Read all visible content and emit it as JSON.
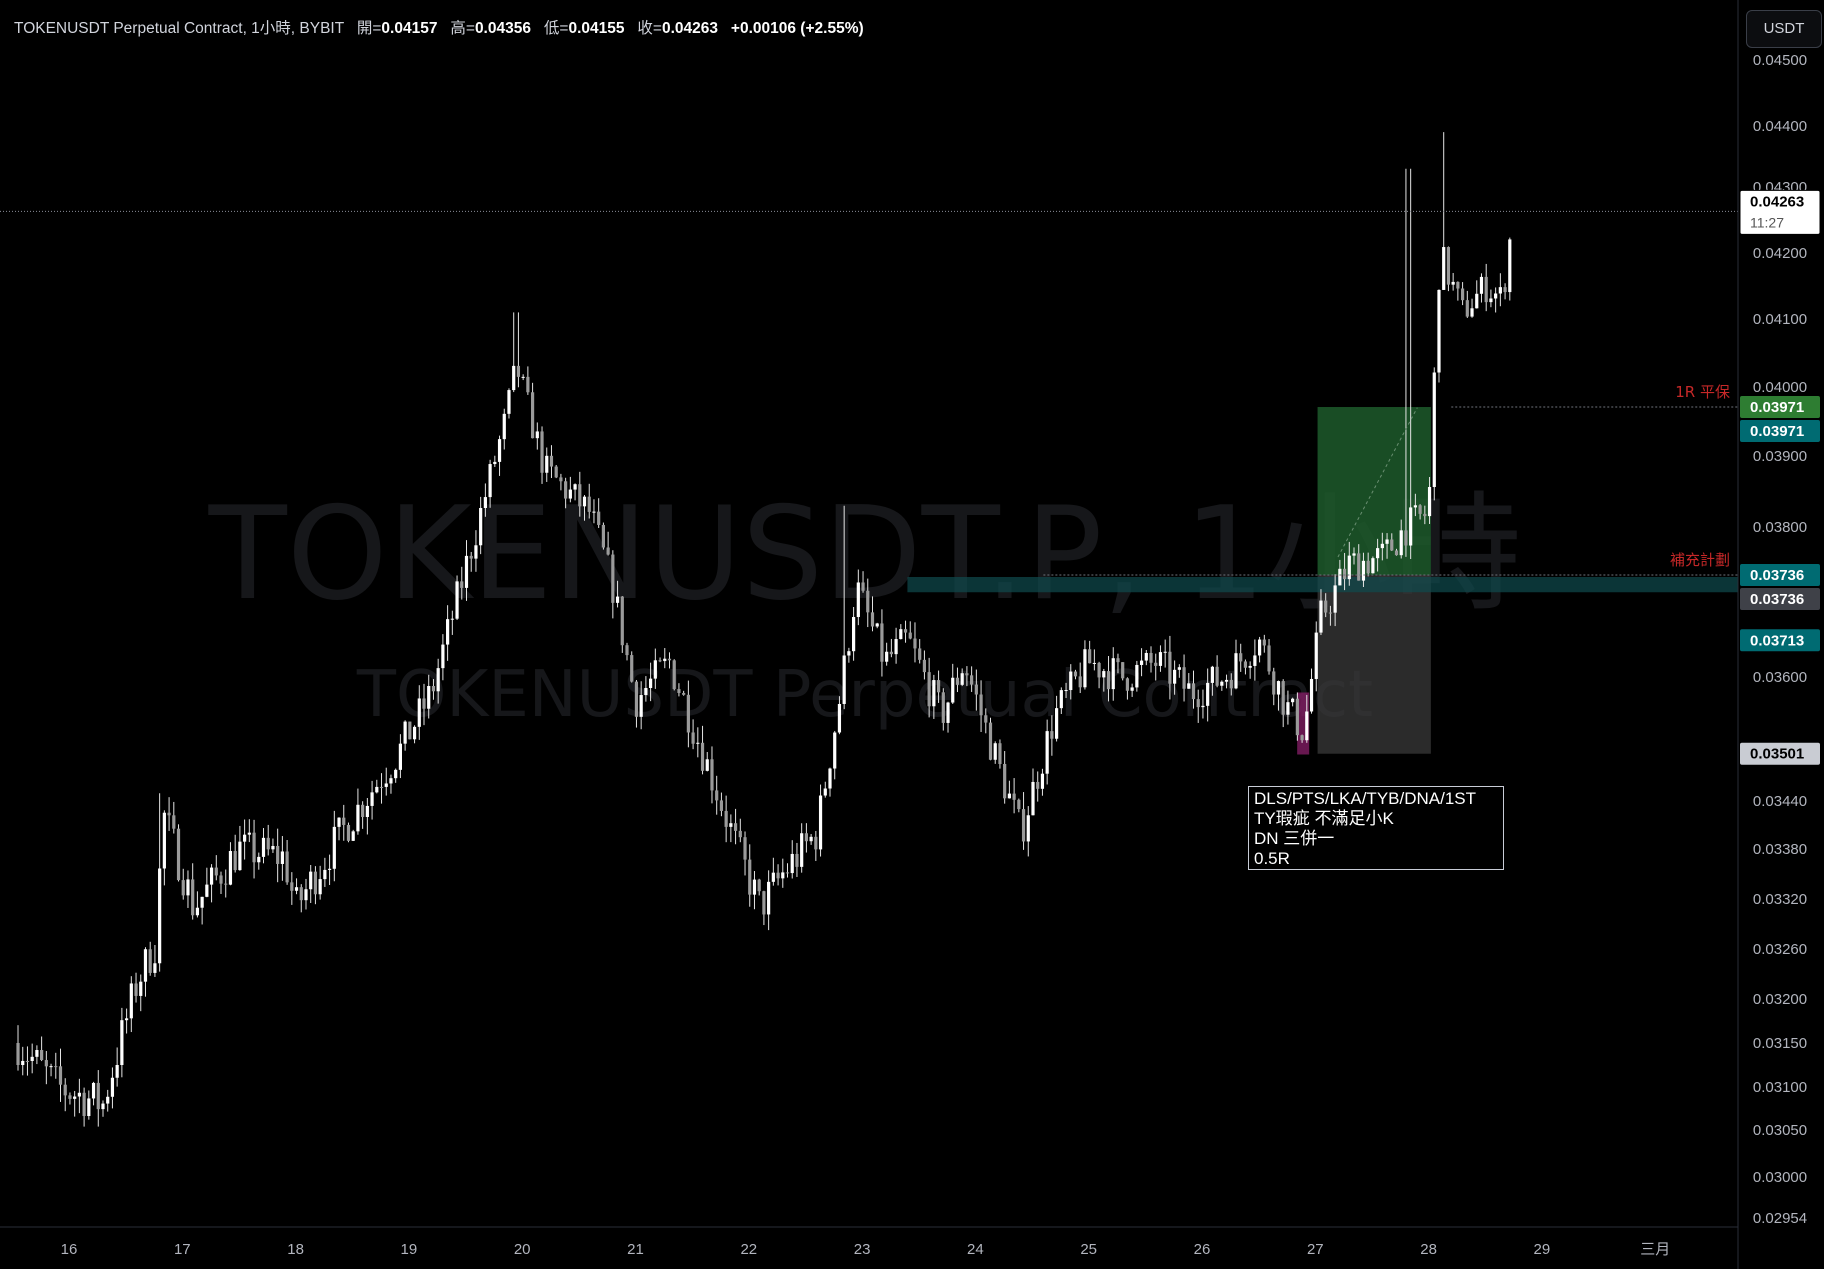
{
  "header": {
    "symbol_text": "TOKENUSDT Perpetual Contract, 1小時, BYBIT",
    "open_label": "開=",
    "open_value": "0.04157",
    "high_label": "高=",
    "high_value": "0.04356",
    "low_label": "低=",
    "low_value": "0.04155",
    "close_label": "收=",
    "close_value": "0.04263",
    "change": "+0.00106 (+2.55%)"
  },
  "currency_button": "USDT",
  "watermark": {
    "line1": "TOKENUSDT.P, 1小時",
    "line2": "TOKENUSDT Perpetual Contract"
  },
  "chart_data": {
    "type": "candlestick",
    "symbol": "TOKENUSDT.P",
    "interval": "1小時",
    "exchange": "BYBIT",
    "ohlc_last": {
      "open": 0.04157,
      "high": 0.04356,
      "low": 0.04155,
      "close": 0.04263
    },
    "y_ticks": [
      "0.04500",
      "0.04400",
      "0.04300",
      "0.04200",
      "0.04100",
      "0.04000",
      "0.03900",
      "0.03800",
      "0.03600",
      "0.03440",
      "0.03380",
      "0.03320",
      "0.03260",
      "0.03200",
      "0.03150",
      "0.03100",
      "0.03050",
      "0.03000",
      "0.02954"
    ],
    "y_tick_values": [
      0.045,
      0.044,
      0.043,
      0.042,
      0.041,
      0.04,
      0.039,
      0.038,
      0.036,
      0.0344,
      0.0338,
      0.0332,
      0.0326,
      0.032,
      0.0315,
      0.031,
      0.0305,
      0.03,
      0.02954
    ],
    "x_ticks": [
      "16",
      "17",
      "18",
      "19",
      "20",
      "21",
      "22",
      "23",
      "24",
      "25",
      "26",
      "27",
      "28",
      "29",
      "三月"
    ],
    "x_tick_values": [
      16,
      17,
      18,
      19,
      20,
      21,
      22,
      23,
      24,
      25,
      26,
      27,
      28,
      29,
      30
    ],
    "x_range": [
      15.55,
      30.8
    ],
    "daily_path": [
      {
        "day": 15.55,
        "close": 0.0315
      },
      {
        "day": 15.9,
        "close": 0.031
      },
      {
        "day": 16.3,
        "close": 0.0308
      },
      {
        "day": 16.6,
        "close": 0.0322
      },
      {
        "day": 16.78,
        "close": 0.0327
      },
      {
        "day": 16.82,
        "close": 0.0343
      },
      {
        "day": 17.1,
        "close": 0.0331
      },
      {
        "day": 17.5,
        "close": 0.0338
      },
      {
        "day": 17.9,
        "close": 0.0337
      },
      {
        "day": 18.0,
        "close": 0.0331
      },
      {
        "day": 18.4,
        "close": 0.034
      },
      {
        "day": 18.9,
        "close": 0.035
      },
      {
        "day": 19.2,
        "close": 0.0358
      },
      {
        "day": 19.6,
        "close": 0.038
      },
      {
        "day": 19.85,
        "close": 0.0395
      },
      {
        "day": 19.95,
        "close": 0.0403
      },
      {
        "day": 20.2,
        "close": 0.0388
      },
      {
        "day": 20.6,
        "close": 0.0382
      },
      {
        "day": 20.8,
        "close": 0.0372
      },
      {
        "day": 21.0,
        "close": 0.0357
      },
      {
        "day": 21.3,
        "close": 0.0362
      },
      {
        "day": 21.6,
        "close": 0.035
      },
      {
        "day": 21.9,
        "close": 0.0338
      },
      {
        "day": 22.1,
        "close": 0.0331
      },
      {
        "day": 22.3,
        "close": 0.0335
      },
      {
        "day": 22.6,
        "close": 0.034
      },
      {
        "day": 22.8,
        "close": 0.0357
      },
      {
        "day": 22.95,
        "close": 0.0372
      },
      {
        "day": 23.2,
        "close": 0.0362
      },
      {
        "day": 23.4,
        "close": 0.0365
      },
      {
        "day": 23.7,
        "close": 0.0355
      },
      {
        "day": 23.9,
        "close": 0.0362
      },
      {
        "day": 24.1,
        "close": 0.0353
      },
      {
        "day": 24.4,
        "close": 0.034
      },
      {
        "day": 24.7,
        "close": 0.0355
      },
      {
        "day": 25.0,
        "close": 0.0362
      },
      {
        "day": 25.3,
        "close": 0.036
      },
      {
        "day": 25.6,
        "close": 0.0362
      },
      {
        "day": 25.9,
        "close": 0.0358
      },
      {
        "day": 26.2,
        "close": 0.036
      },
      {
        "day": 26.5,
        "close": 0.0365
      },
      {
        "day": 26.75,
        "close": 0.0356
      },
      {
        "day": 26.9,
        "close": 0.0353
      },
      {
        "day": 27.05,
        "close": 0.0368
      },
      {
        "day": 27.3,
        "close": 0.0375
      },
      {
        "day": 27.6,
        "close": 0.0376
      },
      {
        "day": 27.8,
        "close": 0.038
      },
      {
        "day": 28.0,
        "close": 0.0382
      },
      {
        "day": 28.1,
        "close": 0.042
      },
      {
        "day": 28.3,
        "close": 0.0411
      },
      {
        "day": 28.5,
        "close": 0.0415
      },
      {
        "day": 28.65,
        "close": 0.0413
      },
      {
        "day": 28.75,
        "close": 0.04263
      }
    ],
    "spikes": [
      {
        "day": 16.8,
        "high": 0.0345
      },
      {
        "day": 19.95,
        "high": 0.0411
      },
      {
        "day": 22.85,
        "high": 0.0383
      },
      {
        "day": 27.82,
        "high": 0.0433
      },
      {
        "day": 28.12,
        "high": 0.0439
      },
      {
        "day": 28.75,
        "high": 0.04356
      }
    ],
    "horizontal_lines": [
      {
        "label": "1R 平保",
        "value": 0.03971,
        "color": "#c62828"
      },
      {
        "label": "補充計劃",
        "value": 0.03736,
        "color": "#c62828"
      }
    ],
    "zone_line": {
      "value": 0.03713,
      "color": "#0f4b4f",
      "from_day": 23.4
    },
    "position": {
      "entry": 0.03736,
      "target": 0.03971,
      "stop": 0.03501,
      "from_day": 27.02,
      "to_day": 28.02,
      "profit_color": "#1d5a2b",
      "loss_color": "#3a3a3a"
    },
    "price_labels": [
      {
        "value": 0.04263,
        "text": "0.04263",
        "sub": "11:27",
        "style": "current"
      },
      {
        "value": 0.03971,
        "text": "0.03971",
        "style": "green"
      },
      {
        "value": 0.03971,
        "text": "0.03971",
        "style": "teal",
        "stack": 1
      },
      {
        "value": 0.03736,
        "text": "0.03736",
        "style": "teal"
      },
      {
        "value": 0.03736,
        "text": "0.03736",
        "style": "gray",
        "stack": 1
      },
      {
        "value": 0.03713,
        "text": "0.03713",
        "style": "teal",
        "stack": 2
      },
      {
        "value": 0.03501,
        "text": "0.03501",
        "style": "lightgray"
      }
    ],
    "colors": {
      "candle": "#e5e5e5",
      "background": "#000000",
      "green_label": "#2e7d32",
      "teal_label": "#006b72",
      "current_label_bg": "#ffffff"
    }
  },
  "note": {
    "line1": "DLS/PTS/LKA/TYB/DNA/1ST",
    "line2": "TY瑕疵 不滿足小K",
    "line3": "DN 三併一",
    "line4": "0.5R"
  }
}
